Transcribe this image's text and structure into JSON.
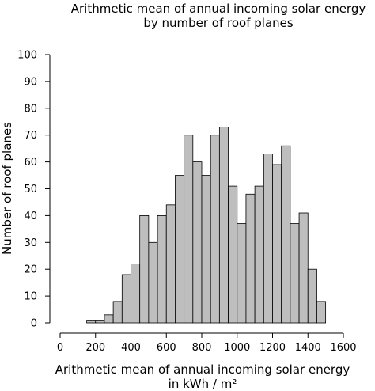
{
  "chart_data": {
    "type": "bar",
    "title": [
      "Arithmetic mean of annual incoming solar energy",
      "by number of roof planes"
    ],
    "xlabel": [
      "Arithmetic mean of annual incoming solar energy",
      "in kWh / m²"
    ],
    "ylabel": "Number of roof planes",
    "xlim": [
      0,
      1600
    ],
    "ylim": [
      0,
      100
    ],
    "xticks": [
      "0",
      "200",
      "400",
      "600",
      "800",
      "1000",
      "1200",
      "1400",
      "1600"
    ],
    "yticks": [
      "0",
      "10",
      "20",
      "30",
      "40",
      "50",
      "60",
      "70",
      "80",
      "90",
      "100"
    ],
    "bin_width": 50,
    "bins": [
      {
        "start": 150,
        "value": 1
      },
      {
        "start": 200,
        "value": 1
      },
      {
        "start": 250,
        "value": 3
      },
      {
        "start": 300,
        "value": 8
      },
      {
        "start": 350,
        "value": 18
      },
      {
        "start": 400,
        "value": 22
      },
      {
        "start": 450,
        "value": 40
      },
      {
        "start": 500,
        "value": 30
      },
      {
        "start": 550,
        "value": 40
      },
      {
        "start": 600,
        "value": 44
      },
      {
        "start": 650,
        "value": 55
      },
      {
        "start": 700,
        "value": 70
      },
      {
        "start": 750,
        "value": 60
      },
      {
        "start": 800,
        "value": 55
      },
      {
        "start": 850,
        "value": 70
      },
      {
        "start": 900,
        "value": 73
      },
      {
        "start": 950,
        "value": 51
      },
      {
        "start": 1000,
        "value": 37
      },
      {
        "start": 1050,
        "value": 48
      },
      {
        "start": 1100,
        "value": 51
      },
      {
        "start": 1150,
        "value": 63
      },
      {
        "start": 1200,
        "value": 59
      },
      {
        "start": 1250,
        "value": 66
      },
      {
        "start": 1300,
        "value": 37
      },
      {
        "start": 1350,
        "value": 41
      },
      {
        "start": 1400,
        "value": 20
      },
      {
        "start": 1450,
        "value": 8
      }
    ],
    "bar_color": "#bebebe",
    "grid": false
  }
}
